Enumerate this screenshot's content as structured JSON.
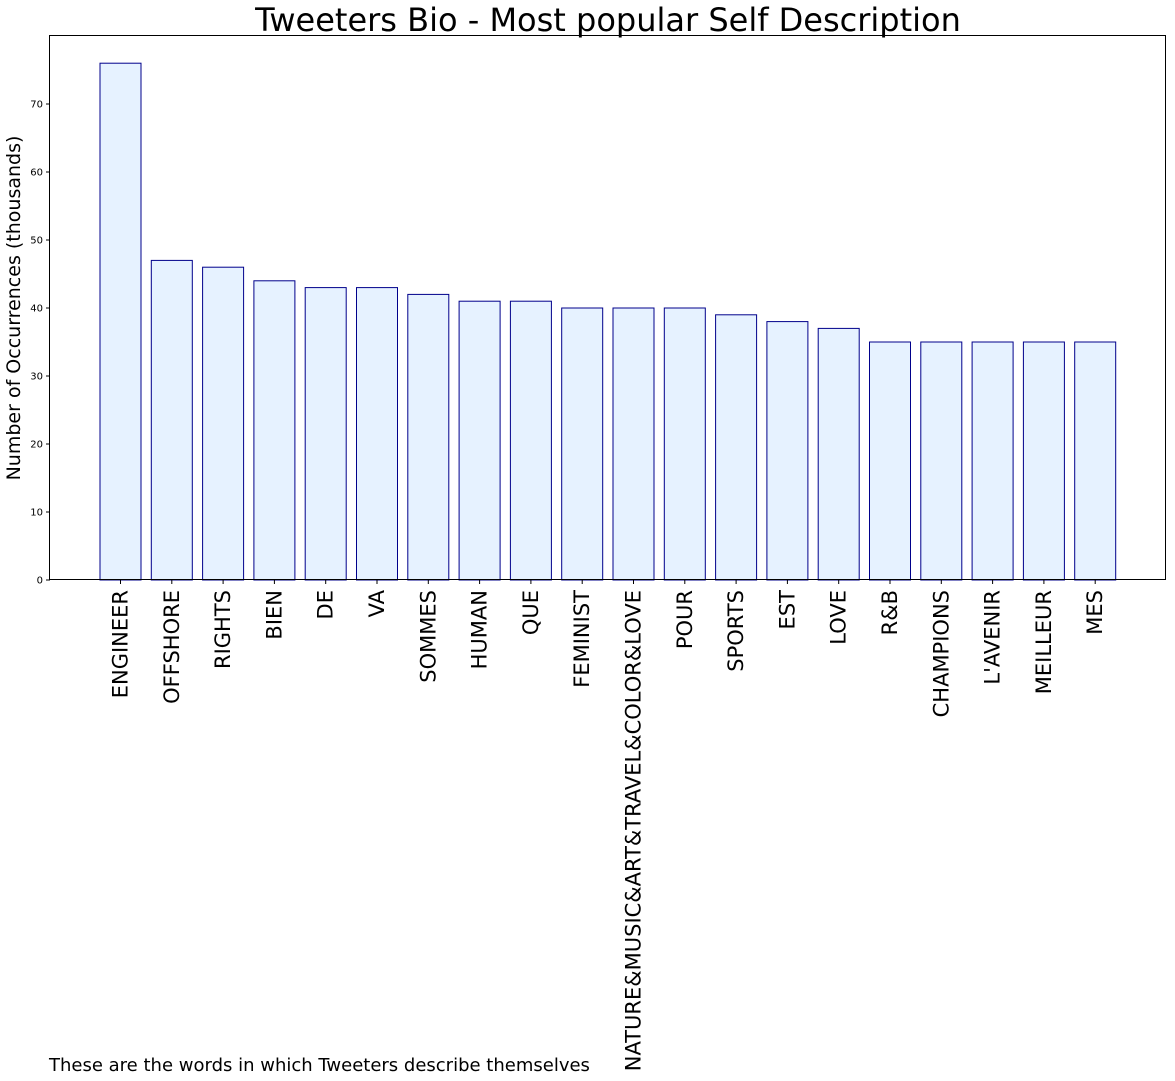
{
  "chart_data": {
    "type": "bar",
    "title": "Tweeters Bio - Most popular Self Description",
    "xlabel": "",
    "ylabel": "Number of Occurrences (thousands)",
    "caption": "These are the words in which Tweeters describe themselves",
    "categories": [
      "ENGINEER",
      "OFFSHORE",
      "RIGHTS",
      "BIEN",
      "DE",
      "VA",
      "SOMMES",
      "HUMAN",
      "QUE",
      "FEMINIST",
      "NATURE&MUSIC&ART&TRAVEL&COLOR&LOVE",
      "POUR",
      "SPORTS",
      "EST",
      "LOVE",
      "R&B",
      "CHAMPIONS",
      "L'AVENIR",
      "MEILLEUR",
      "MES"
    ],
    "values": [
      76,
      47,
      46,
      44,
      43,
      43,
      42,
      41,
      41,
      40,
      40,
      40,
      39,
      38,
      37,
      35,
      35,
      35,
      35,
      35
    ],
    "ylim": [
      0,
      80
    ],
    "yticks": [
      0,
      10,
      20,
      30,
      40,
      50,
      60,
      70
    ],
    "grid": false,
    "bar_fill": "#e6f2ff",
    "bar_edge": "#00008b"
  }
}
